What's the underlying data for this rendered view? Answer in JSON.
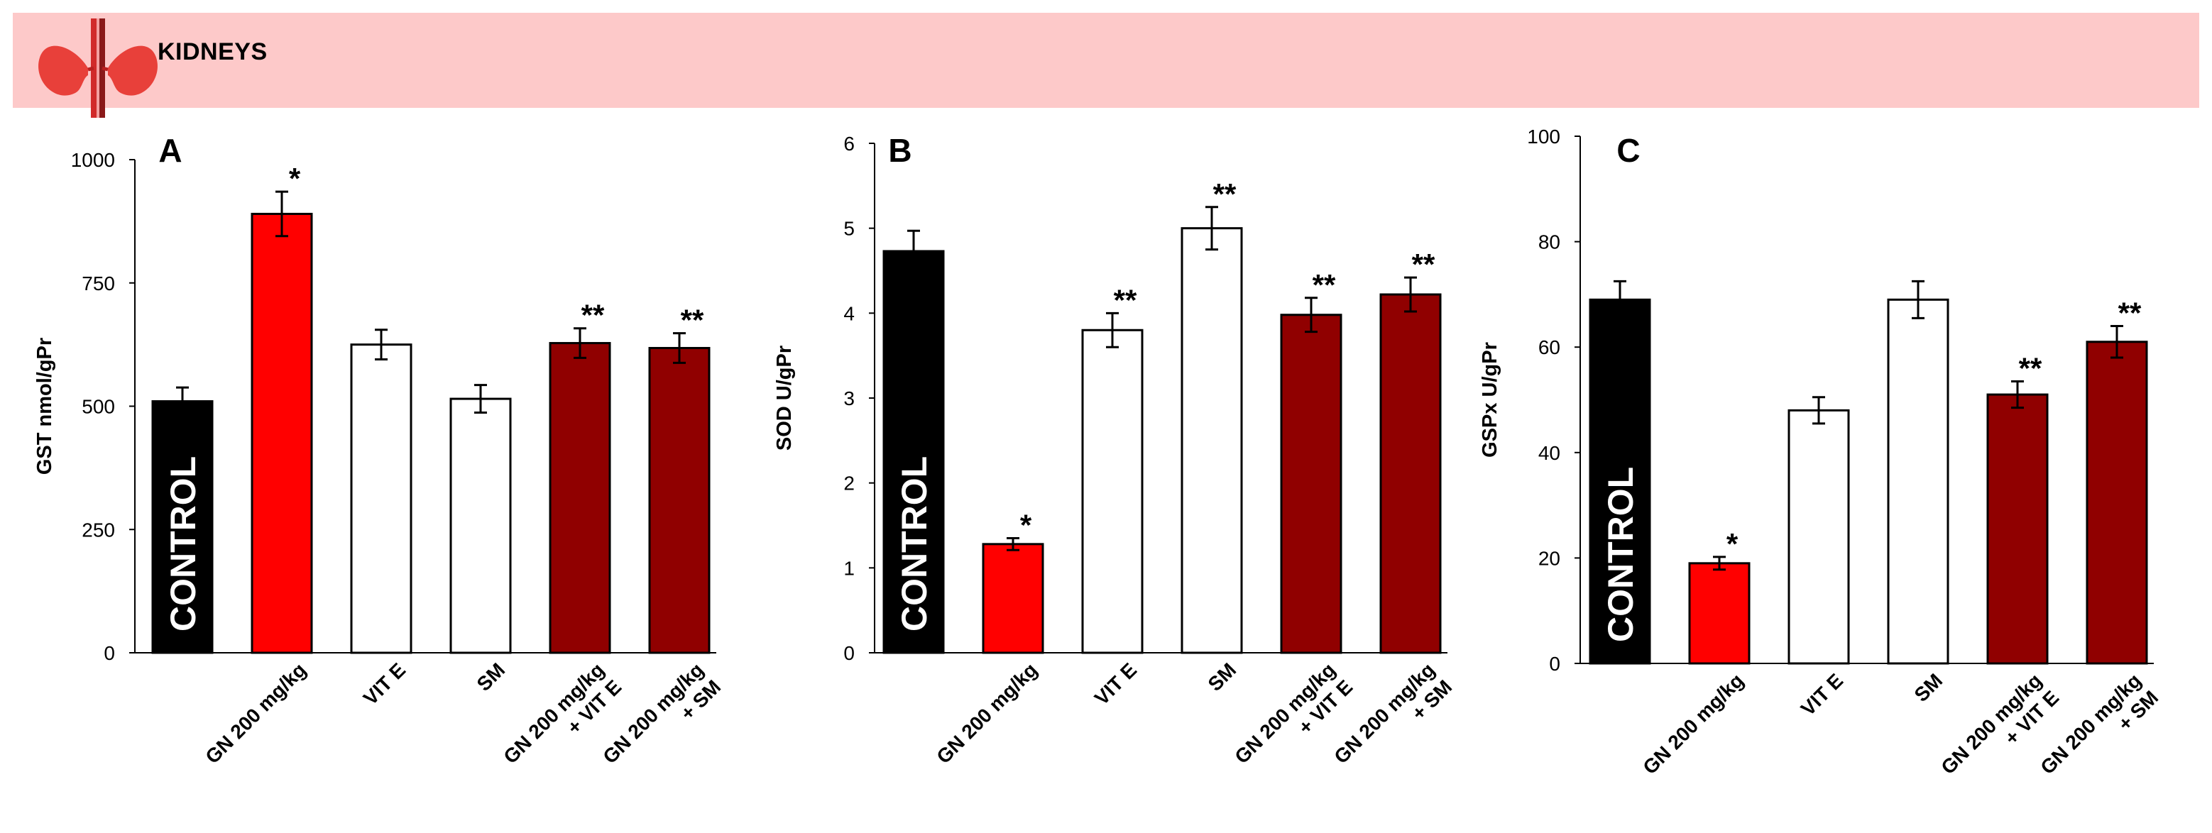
{
  "header": {
    "title": "KIDNEYS",
    "icon": "kidneys-icon"
  },
  "colors": {
    "control": "#000000",
    "gn": "#ff0000",
    "treatment_only": "#ffffff",
    "gn_plus_treatment": "#900000",
    "banner": "#fdc9c9"
  },
  "chart_data": [
    {
      "type": "bar",
      "panel": "A",
      "ylabel": "GST nmol/gPr",
      "ylim": [
        0,
        1000
      ],
      "yticks": [
        0,
        250,
        500,
        750,
        1000
      ],
      "categories": [
        {
          "label": "CONTROL",
          "label_inside_bar": true
        },
        {
          "label": "GN 200 mg/kg"
        },
        {
          "label": "VIT E"
        },
        {
          "label": "SM"
        },
        {
          "label": "GN 200 mg/kg",
          "label2": "+ VIT E"
        },
        {
          "label": "GN 200 mg/kg",
          "label2": "+ SM"
        }
      ],
      "values": [
        510,
        890,
        625,
        515,
        628,
        618
      ],
      "errors": [
        28,
        45,
        30,
        28,
        30,
        30
      ],
      "significance": [
        "",
        "*",
        "",
        "",
        "**",
        "**"
      ],
      "bar_colors": [
        "#000000",
        "#ff0000",
        "#ffffff",
        "#ffffff",
        "#900000",
        "#900000"
      ]
    },
    {
      "type": "bar",
      "panel": "B",
      "ylabel": "SOD U/gPr",
      "ylim": [
        0,
        6
      ],
      "yticks": [
        0,
        1,
        2,
        3,
        4,
        5,
        6
      ],
      "categories": [
        {
          "label": "CONTROL",
          "label_inside_bar": true
        },
        {
          "label": "GN 200 mg/kg"
        },
        {
          "label": "VIT E"
        },
        {
          "label": "SM"
        },
        {
          "label": "GN 200 mg/kg",
          "label2": "+ VIT E"
        },
        {
          "label": "GN 200 mg/kg",
          "label2": "+ SM"
        }
      ],
      "values": [
        4.73,
        1.28,
        3.8,
        5.0,
        3.98,
        4.22
      ],
      "errors": [
        0.24,
        0.07,
        0.2,
        0.25,
        0.2,
        0.2
      ],
      "significance": [
        "",
        "*",
        "**",
        "**",
        "**",
        "**"
      ],
      "bar_colors": [
        "#000000",
        "#ff0000",
        "#ffffff",
        "#ffffff",
        "#900000",
        "#900000"
      ]
    },
    {
      "type": "bar",
      "panel": "C",
      "ylabel": "GSPx U/gPr",
      "ylim": [
        0,
        100
      ],
      "yticks": [
        0,
        20,
        40,
        60,
        80,
        100
      ],
      "categories": [
        {
          "label": "CONTROL",
          "label_inside_bar": true
        },
        {
          "label": "GN 200 mg/kg"
        },
        {
          "label": "VIT E"
        },
        {
          "label": "SM"
        },
        {
          "label": "GN 200 mg/kg",
          "label2": "+ VIT E"
        },
        {
          "label": "GN 200 mg/kg",
          "label2": "+ SM"
        }
      ],
      "values": [
        69,
        19,
        48,
        69,
        51,
        61
      ],
      "errors": [
        3.5,
        1.2,
        2.5,
        3.5,
        2.5,
        3.0
      ],
      "significance": [
        "",
        "*",
        "",
        "",
        "**",
        "**"
      ],
      "bar_colors": [
        "#000000",
        "#ff0000",
        "#ffffff",
        "#ffffff",
        "#900000",
        "#900000"
      ]
    }
  ]
}
